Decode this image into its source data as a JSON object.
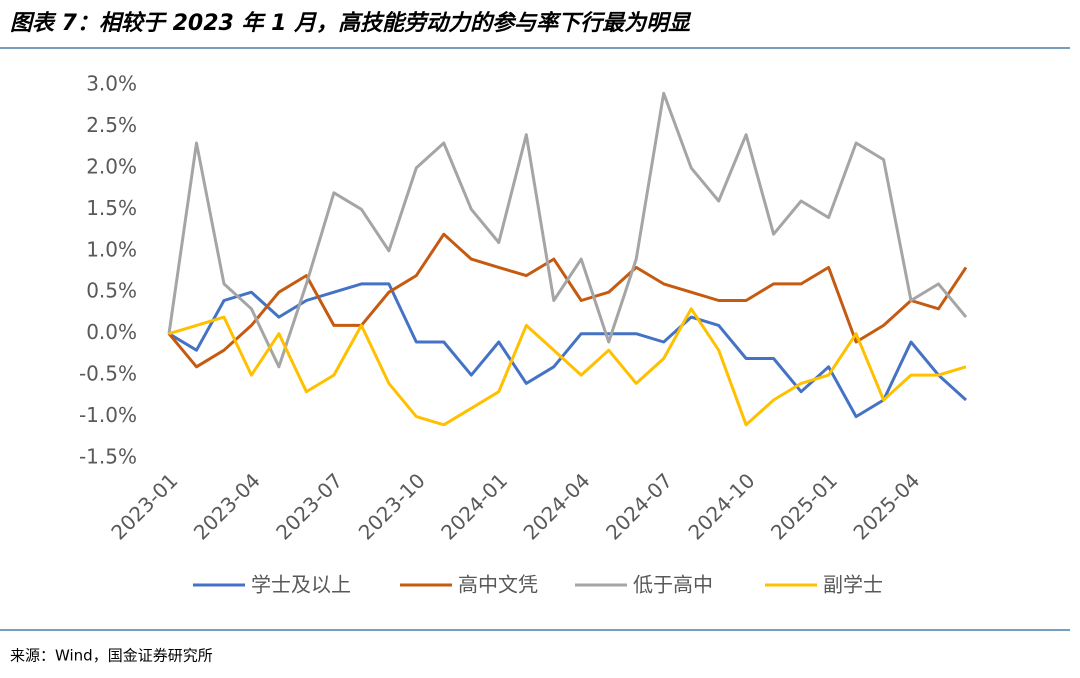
{
  "chart_data": {
    "type": "line",
    "title": "图表 7：相较于 2023 年 1 月，高技能劳动力的参与率下行最为明显",
    "source": "来源：Wind，国金证券研究所",
    "categories": [
      "2023-01",
      null,
      null,
      "2023-04",
      null,
      null,
      "2023-07",
      null,
      null,
      "2023-10",
      null,
      null,
      "2024-01",
      null,
      null,
      "2024-04",
      null,
      null,
      "2024-07",
      null,
      null,
      "2024-10",
      null,
      null,
      "2025-01",
      null,
      null,
      "2025-04",
      null,
      null
    ],
    "series": [
      {
        "name": "学士及以上",
        "color": "#4472c4",
        "values": [
          0,
          -0.2,
          0.4,
          0.5,
          0.2,
          0.4,
          0.5,
          0.6,
          0.6,
          -0.1,
          -0.1,
          -0.5,
          -0.1,
          -0.6,
          -0.4,
          0,
          0,
          0,
          -0.1,
          0.2,
          0.1,
          -0.3,
          -0.3,
          -0.7,
          -0.4,
          -1.0,
          -0.8,
          -0.1,
          -0.5,
          -0.8
        ]
      },
      {
        "name": "高中文凭",
        "color": "#c55a11",
        "values": [
          0,
          -0.4,
          -0.2,
          0.1,
          0.5,
          0.7,
          0.1,
          0.1,
          0.5,
          0.7,
          1.2,
          0.9,
          0.8,
          0.7,
          0.9,
          0.4,
          0.5,
          0.8,
          0.6,
          0.5,
          0.4,
          0.4,
          0.6,
          0.6,
          0.8,
          -0.1,
          0.1,
          0.4,
          0.3,
          0.8
        ]
      },
      {
        "name": "低于高中",
        "color": "#a5a5a5",
        "values": [
          0,
          2.3,
          0.6,
          0.3,
          -0.4,
          0.6,
          1.7,
          1.5,
          1.0,
          2.0,
          2.3,
          1.5,
          1.1,
          2.4,
          0.4,
          0.9,
          -0.1,
          0.9,
          2.9,
          2.0,
          1.6,
          2.4,
          1.2,
          1.6,
          1.4,
          2.3,
          2.1,
          0.4,
          0.6,
          0.2
        ]
      },
      {
        "name": "副学士",
        "color": "#ffc000",
        "values": [
          0,
          0.1,
          0.2,
          -0.5,
          0,
          -0.7,
          -0.5,
          0.1,
          -0.6,
          -1.0,
          -1.1,
          -0.9,
          -0.7,
          0.1,
          -0.2,
          -0.5,
          -0.2,
          -0.6,
          -0.3,
          0.3,
          -0.2,
          -1.1,
          -0.8,
          -0.6,
          -0.5,
          0,
          -0.8,
          -0.5,
          -0.5,
          -0.4
        ]
      }
    ],
    "ylim": [
      -1.5,
      3
    ],
    "yticks": [
      {
        "value": -1.5,
        "label": "-1.5%"
      },
      {
        "value": -1,
        "label": "-1.0%"
      },
      {
        "value": -0.5,
        "label": "-0.5%"
      },
      {
        "value": 0,
        "label": "0.0%"
      },
      {
        "value": 0.5,
        "label": "0.5%"
      },
      {
        "value": 1,
        "label": "1.0%"
      },
      {
        "value": 1.5,
        "label": "1.5%"
      },
      {
        "value": 2,
        "label": "2.0%"
      },
      {
        "value": 2.5,
        "label": "2.5%"
      },
      {
        "value": 3,
        "label": "3.0%"
      }
    ],
    "grid": false
  }
}
